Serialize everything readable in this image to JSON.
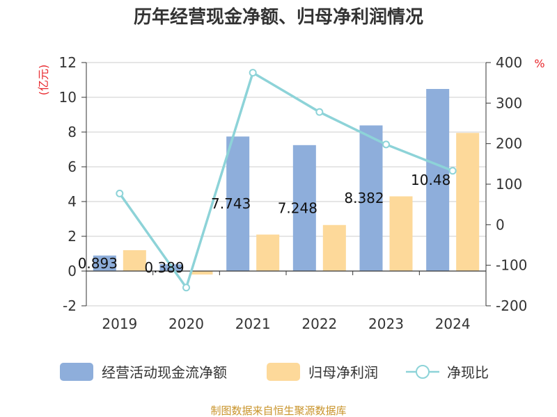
{
  "title": "历年经营现金净额、归母净利润情况",
  "source": "制图数据来自恒生聚源数据库",
  "chart_data": {
    "type": "bar",
    "categories": [
      "2019",
      "2020",
      "2021",
      "2022",
      "2023",
      "2024"
    ],
    "y_left": {
      "label": "(亿元)",
      "min": -2,
      "max": 12,
      "ticks": [
        -2,
        0,
        2,
        4,
        6,
        8,
        10,
        12
      ]
    },
    "y_right": {
      "label": "%",
      "min": -200,
      "max": 400,
      "ticks": [
        -200,
        -100,
        0,
        100,
        200,
        300,
        400
      ]
    },
    "series": [
      {
        "name": "经营活动现金流净额",
        "type": "bar",
        "axis": "left",
        "color": "#8eaedb",
        "values": [
          0.893,
          0.389,
          7.743,
          7.248,
          8.382,
          10.48
        ],
        "labels": [
          "0.893",
          "0.389",
          "7.743",
          "7.248",
          "8.382",
          "10.48"
        ]
      },
      {
        "name": "归母净利润",
        "type": "bar",
        "axis": "left",
        "color": "#fdd99a",
        "values": [
          1.2,
          -0.2,
          2.1,
          2.65,
          4.3,
          7.95
        ]
      },
      {
        "name": "净现比",
        "type": "line",
        "axis": "right",
        "color": "#8dd3d8",
        "values": [
          77,
          -155,
          375,
          278,
          198,
          133
        ]
      }
    ],
    "legend_position": "bottom",
    "grid": true
  }
}
